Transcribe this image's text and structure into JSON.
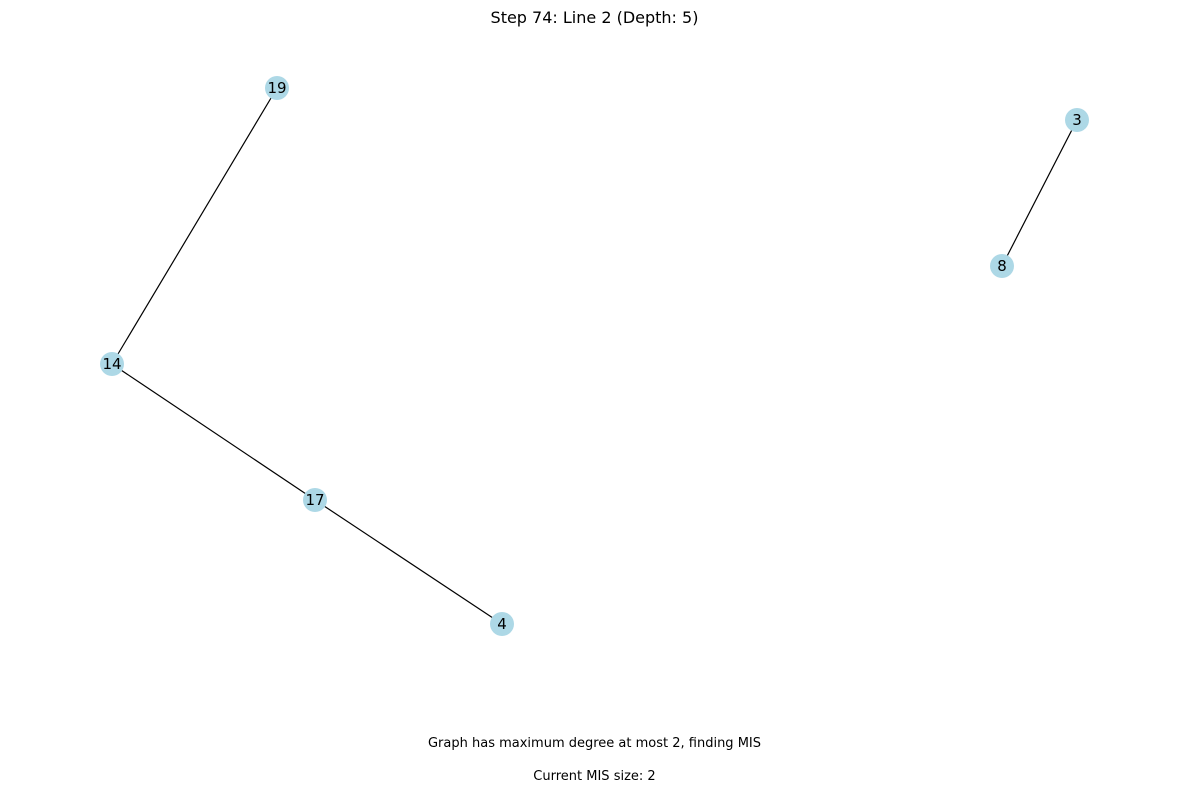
{
  "title": "Step 74: Line 2 (Depth: 5)",
  "status_text": "Graph has maximum degree at most 2, finding MIS",
  "mis_text": "Current MIS size: 2",
  "colors": {
    "node": "#add8e6",
    "edge": "#000000"
  },
  "graph": {
    "nodes": [
      "19",
      "3",
      "8",
      "14",
      "17",
      "4"
    ],
    "edges": [
      [
        "19",
        "14"
      ],
      [
        "14",
        "17"
      ],
      [
        "17",
        "4"
      ],
      [
        "3",
        "8"
      ]
    ]
  }
}
